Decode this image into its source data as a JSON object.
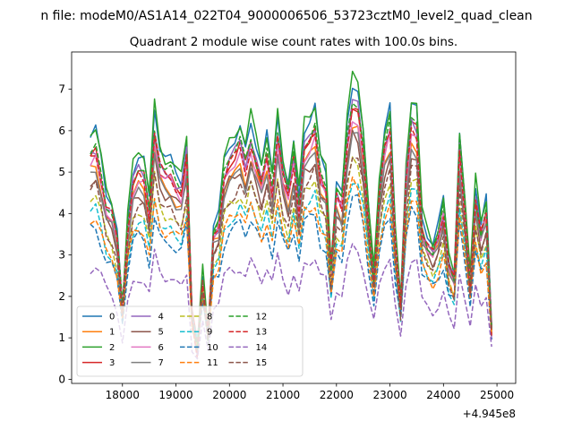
{
  "suptitle": "n file: modeM0/AS1A14_022T04_9000006506_53723cztM0_level2_quad_clean",
  "chart_data": {
    "type": "line",
    "title": "Quadrant 2 module wise count rates with 100.0s bins.",
    "xlabel": "",
    "ylabel": "",
    "x_offset_label": "+4.945e8",
    "xlim": [
      17050,
      25350
    ],
    "ylim": [
      -0.1,
      7.9
    ],
    "x_ticks": [
      18000,
      19000,
      20000,
      21000,
      22000,
      23000,
      24000,
      25000
    ],
    "y_ticks": [
      0,
      1,
      2,
      3,
      4,
      5,
      6,
      7
    ],
    "x_start": 17400,
    "x_step": 100,
    "x_count": 76,
    "legend": {
      "placement": "lower-left",
      "columns": 4
    },
    "profile": [
      0.78,
      0.8,
      0.7,
      0.58,
      0.55,
      0.45,
      0.18,
      0.5,
      0.68,
      0.72,
      0.7,
      0.56,
      0.88,
      0.74,
      0.7,
      0.7,
      0.66,
      0.64,
      0.78,
      0.15,
      0.03,
      0.3,
      0.08,
      0.46,
      0.5,
      0.7,
      0.76,
      0.78,
      0.82,
      0.74,
      0.84,
      0.76,
      0.68,
      0.78,
      0.64,
      0.86,
      0.7,
      0.62,
      0.76,
      0.58,
      0.82,
      0.84,
      0.88,
      0.7,
      0.66,
      0.34,
      0.62,
      0.58,
      0.84,
      0.98,
      0.96,
      0.8,
      0.52,
      0.3,
      0.62,
      0.8,
      0.88,
      0.46,
      0.2,
      0.68,
      0.9,
      0.88,
      0.5,
      0.44,
      0.4,
      0.46,
      0.56,
      0.36,
      0.3,
      0.8,
      0.56,
      0.28,
      0.62,
      0.48,
      0.56,
      0.1
    ],
    "series": [
      {
        "name": "0",
        "color": "#1f77b4",
        "dash": "solid",
        "base": 0.45,
        "amp": 6.9
      },
      {
        "name": "1",
        "color": "#ff7f0e",
        "dash": "solid",
        "base": 0.7,
        "amp": 5.5
      },
      {
        "name": "2",
        "color": "#2ca02c",
        "dash": "solid",
        "base": 0.5,
        "amp": 6.95
      },
      {
        "name": "3",
        "color": "#d62728",
        "dash": "solid",
        "base": 0.6,
        "amp": 6.1
      },
      {
        "name": "4",
        "color": "#9467bd",
        "dash": "solid",
        "base": 0.5,
        "amp": 6.3
      },
      {
        "name": "5",
        "color": "#8c564b",
        "dash": "solid",
        "base": 0.7,
        "amp": 5.3
      },
      {
        "name": "6",
        "color": "#e377c2",
        "dash": "solid",
        "base": 0.6,
        "amp": 5.9
      },
      {
        "name": "7",
        "color": "#7f7f7f",
        "dash": "solid",
        "base": 0.6,
        "amp": 5.5
      },
      {
        "name": "8",
        "color": "#bcbd22",
        "dash": "dashed",
        "base": 0.6,
        "amp": 4.8
      },
      {
        "name": "9",
        "color": "#17becf",
        "dash": "dashed",
        "base": 0.7,
        "amp": 4.2
      },
      {
        "name": "10",
        "color": "#1f77b4",
        "dash": "dashed",
        "base": 0.8,
        "amp": 3.6
      },
      {
        "name": "11",
        "color": "#ff7f0e",
        "dash": "dashed",
        "base": 0.7,
        "amp": 4.1
      },
      {
        "name": "12",
        "color": "#2ca02c",
        "dash": "dashed",
        "base": 0.5,
        "amp": 6.4
      },
      {
        "name": "13",
        "color": "#d62728",
        "dash": "dashed",
        "base": 0.5,
        "amp": 6.2
      },
      {
        "name": "14",
        "color": "#9467bd",
        "dash": "dashed",
        "base": 0.4,
        "amp": 2.9
      },
      {
        "name": "15",
        "color": "#8c564b",
        "dash": "dashed",
        "base": 0.6,
        "amp": 5.0
      }
    ]
  }
}
